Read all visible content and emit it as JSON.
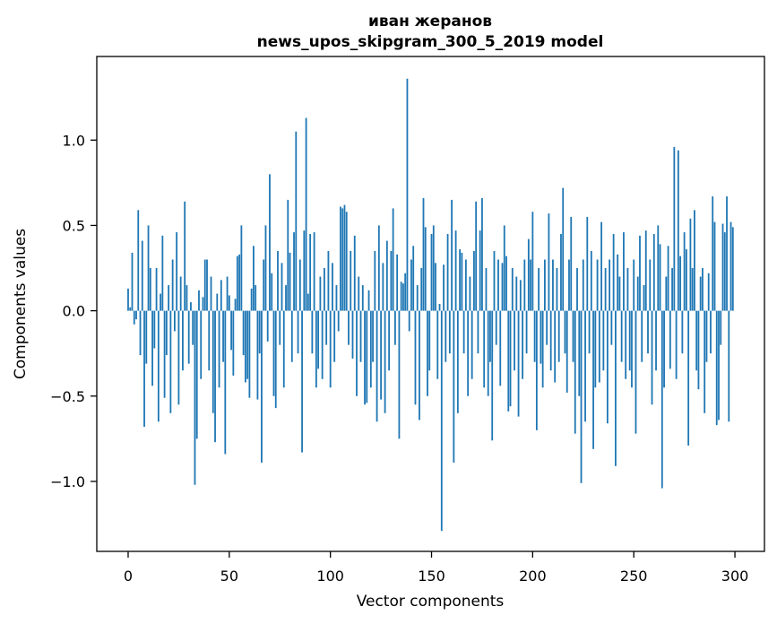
{
  "figure": {
    "title_line1": "иван жеранов",
    "title_line2": "news_upos_skipgram_300_5_2019 model",
    "xlabel": "Vector components",
    "ylabel": "Components values"
  },
  "chart_data": {
    "type": "bar",
    "title": "иван жеранов\nnews_upos_skipgram_300_5_2019 model",
    "xlabel": "Vector components",
    "ylabel": "Components values",
    "legend": null,
    "grid": false,
    "bar_color": "#1f77b4",
    "axis_color": "#000000",
    "background_color": "#ffffff",
    "n_components": 300,
    "bar_width": 0.8,
    "xlim": [
      -15.5,
      314.6
    ],
    "ylim": [
      -1.41,
      1.49
    ],
    "x_ticks": [
      0,
      50,
      100,
      150,
      200,
      250,
      300
    ],
    "x_tick_labels": [
      "0",
      "50",
      "100",
      "150",
      "200",
      "250",
      "300"
    ],
    "y_ticks": [
      -1.0,
      -0.5,
      0.0,
      0.5,
      1.0
    ],
    "y_tick_labels": [
      "−1.0",
      "−0.5",
      "0.0",
      "0.5",
      "1.0"
    ],
    "values": [
      0.13,
      0.02,
      0.34,
      -0.08,
      -0.05,
      0.59,
      -0.26,
      0.41,
      -0.68,
      -0.31,
      0.5,
      0.25,
      -0.44,
      -0.22,
      0.25,
      -0.65,
      0.1,
      0.44,
      -0.51,
      -0.26,
      0.15,
      -0.6,
      0.3,
      -0.12,
      0.46,
      -0.55,
      0.2,
      -0.35,
      0.64,
      0.15,
      -0.31,
      0.05,
      -0.2,
      -1.02,
      -0.75,
      0.12,
      -0.4,
      0.08,
      0.3,
      0.3,
      -0.35,
      0.2,
      -0.6,
      -0.77,
      0.1,
      -0.45,
      0.18,
      -0.3,
      -0.84,
      0.2,
      0.09,
      -0.23,
      -0.38,
      0.07,
      0.32,
      0.33,
      0.5,
      -0.26,
      -0.42,
      -0.4,
      -0.51,
      0.13,
      0.38,
      0.15,
      -0.52,
      -0.25,
      -0.89,
      0.3,
      0.5,
      -0.18,
      0.8,
      0.22,
      -0.5,
      -0.57,
      0.35,
      -0.2,
      0.28,
      -0.45,
      0.15,
      0.65,
      0.34,
      -0.3,
      0.46,
      1.05,
      -0.25,
      0.3,
      -0.83,
      0.47,
      1.13,
      0.1,
      0.45,
      -0.25,
      0.46,
      -0.45,
      -0.34,
      0.2,
      -0.4,
      0.25,
      -0.2,
      0.35,
      -0.45,
      0.28,
      -0.3,
      0.15,
      -0.12,
      0.61,
      0.6,
      0.62,
      0.58,
      -0.2,
      0.35,
      -0.28,
      0.44,
      -0.5,
      0.2,
      -0.3,
      0.15,
      -0.55,
      -0.54,
      0.12,
      -0.45,
      -0.3,
      0.35,
      -0.65,
      0.5,
      -0.52,
      0.28,
      -0.6,
      0.41,
      -0.35,
      0.35,
      0.6,
      -0.2,
      0.33,
      -0.75,
      0.17,
      0.16,
      0.22,
      1.36,
      -0.12,
      0.3,
      0.38,
      -0.55,
      0.15,
      -0.64,
      0.25,
      0.66,
      0.49,
      -0.5,
      -0.35,
      0.45,
      0.5,
      0.28,
      -0.4,
      0.04,
      -1.29,
      0.27,
      -0.3,
      0.45,
      -0.25,
      0.65,
      -0.89,
      0.47,
      -0.6,
      0.36,
      0.34,
      -0.25,
      0.3,
      -0.5,
      0.2,
      -0.4,
      0.35,
      0.64,
      -0.25,
      0.47,
      0.66,
      -0.45,
      0.25,
      -0.5,
      -0.3,
      -0.76,
      0.35,
      -0.2,
      0.3,
      -0.44,
      0.28,
      0.5,
      0.32,
      -0.59,
      -0.56,
      0.25,
      -0.35,
      0.2,
      -0.62,
      0.18,
      -0.4,
      0.3,
      -0.25,
      0.42,
      0.3,
      0.58,
      -0.3,
      -0.7,
      0.25,
      -0.31,
      -0.45,
      0.3,
      -0.2,
      0.57,
      -0.35,
      0.3,
      -0.42,
      0.25,
      -0.3,
      0.45,
      0.72,
      -0.25,
      -0.48,
      0.3,
      0.55,
      -0.3,
      -0.72,
      0.25,
      -0.5,
      -1.01,
      0.3,
      -0.65,
      0.55,
      -0.25,
      0.35,
      -0.81,
      -0.45,
      0.3,
      -0.42,
      0.52,
      -0.35,
      0.25,
      -0.66,
      0.3,
      -0.2,
      0.45,
      -0.91,
      0.33,
      0.2,
      -0.3,
      0.46,
      -0.4,
      0.25,
      -0.35,
      -0.45,
      0.3,
      -0.72,
      0.2,
      0.44,
      -0.3,
      0.15,
      0.47,
      -0.25,
      0.3,
      -0.55,
      0.45,
      -0.35,
      0.5,
      0.39,
      -1.04,
      -0.45,
      0.2,
      0.38,
      -0.34,
      0.25,
      0.96,
      -0.4,
      0.94,
      0.32,
      -0.25,
      0.46,
      0.36,
      -0.79,
      0.54,
      0.25,
      0.59,
      -0.35,
      -0.46,
      0.2,
      0.25,
      -0.6,
      -0.3,
      0.22,
      -0.25,
      0.67,
      0.52,
      -0.67,
      -0.64,
      -0.2,
      0.51,
      0.46,
      0.67,
      -0.65,
      0.52,
      0.49
    ]
  }
}
